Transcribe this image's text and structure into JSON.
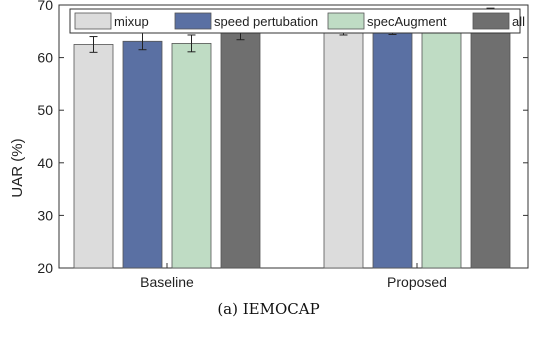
{
  "caption": "(a) IEMOCAP",
  "colors": {
    "mixup": "#dcdcdc",
    "speed_pertubation": "#5a70a3",
    "specAugment": "#bfdcc4",
    "all": "#6f6f6f",
    "axis": "#333333"
  },
  "chart_data": {
    "type": "bar",
    "title": "",
    "xlabel": "",
    "ylabel": "UAR (%)",
    "ylim": [
      20,
      70
    ],
    "yticks": [
      20,
      30,
      40,
      50,
      60,
      70
    ],
    "categories": [
      "Baseline",
      "Proposed"
    ],
    "legend_position": "top",
    "grid": false,
    "series": [
      {
        "name": "mixup",
        "values": [
          62.5,
          65.8
        ],
        "errors": [
          1.5,
          1.5
        ]
      },
      {
        "name": "speed pertubation",
        "values": [
          63.1,
          66.0
        ],
        "errors": [
          1.6,
          1.6
        ]
      },
      {
        "name": "specAugment",
        "values": [
          62.7,
          66.8
        ],
        "errors": [
          1.6,
          1.6
        ]
      },
      {
        "name": "all",
        "values": [
          65.1,
          68.1
        ],
        "errors": [
          1.7,
          1.3
        ]
      }
    ]
  }
}
